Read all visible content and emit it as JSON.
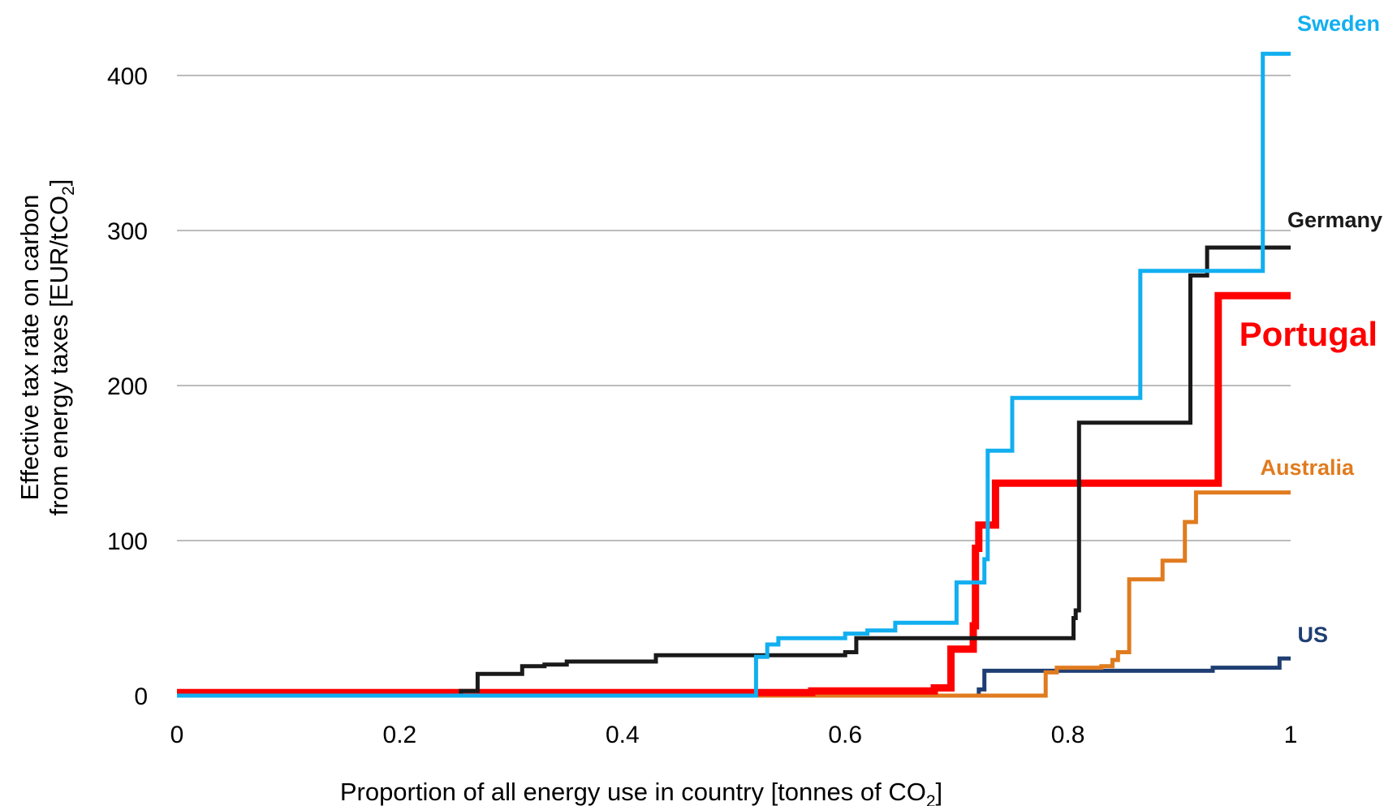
{
  "chart_data": {
    "type": "line",
    "step": true,
    "xlabel": "Proportion of all energy use in country [tonnes of CO",
    "xlabel_sub": "2",
    "xlabel_tail": "]",
    "ylabel_line1": "Effective tax rate on carbon",
    "ylabel_line2": "from energy taxes [EUR/tCO",
    "ylabel_line2_sub": "2",
    "ylabel_line2_tail": "]",
    "xlim": [
      0,
      1
    ],
    "ylim": [
      0,
      400
    ],
    "x_ticks": [
      0,
      0.2,
      0.4,
      0.6,
      0.8,
      1
    ],
    "x_tick_labels": [
      "0",
      "0.2",
      "0.4",
      "0.6",
      "0.8",
      "1"
    ],
    "y_ticks": [
      0,
      100,
      200,
      300,
      400
    ],
    "y_tick_labels": [
      "0",
      "100",
      "200",
      "300",
      "400"
    ],
    "grid": "horizontal",
    "legend": "inline labels at right end of each series",
    "series": [
      {
        "name": "US",
        "color": "#1f3f73",
        "width": 5,
        "x": [
          0,
          0.69,
          0.72,
          0.725,
          0.91,
          0.93,
          0.985,
          0.99,
          1.0
        ],
        "y": [
          0,
          0,
          4,
          16,
          16,
          18,
          18,
          24,
          24
        ]
      },
      {
        "name": "Australia",
        "color": "#e07b1f",
        "width": 5,
        "x": [
          0,
          0.48,
          0.765,
          0.78,
          0.79,
          0.83,
          0.84,
          0.845,
          0.855,
          0.88,
          0.885,
          0.905,
          0.915,
          1.0
        ],
        "y": [
          0,
          0,
          0,
          15,
          18,
          19,
          23,
          28,
          75,
          75,
          87,
          112,
          131,
          131
        ]
      },
      {
        "name": "Portugal",
        "color": "#ff0000",
        "width": 9,
        "x": [
          0,
          0.35,
          0.57,
          0.68,
          0.695,
          0.715,
          0.717,
          0.72,
          0.735,
          0.935,
          1.0
        ],
        "y": [
          2,
          2,
          3,
          5,
          30,
          45,
          95,
          110,
          137,
          258,
          258
        ]
      },
      {
        "name": "Germany",
        "color": "#1a1a1a",
        "width": 5,
        "x": [
          0,
          0.24,
          0.255,
          0.27,
          0.3,
          0.31,
          0.33,
          0.35,
          0.43,
          0.6,
          0.61,
          0.78,
          0.805,
          0.807,
          0.81,
          0.91,
          0.925,
          1.0
        ],
        "y": [
          0,
          0,
          3,
          14,
          14,
          19,
          20,
          22,
          26,
          28,
          37,
          37,
          50,
          55,
          176,
          271,
          289,
          289
        ]
      },
      {
        "name": "Sweden",
        "color": "#12aff0",
        "width": 5,
        "x": [
          0,
          0.48,
          0.52,
          0.53,
          0.54,
          0.6,
          0.62,
          0.645,
          0.7,
          0.72,
          0.725,
          0.728,
          0.75,
          0.86,
          0.865,
          0.975,
          1.0
        ],
        "y": [
          0,
          0,
          25,
          33,
          37,
          40,
          42,
          47,
          73,
          73,
          88,
          158,
          192,
          192,
          274,
          414,
          414
        ]
      }
    ],
    "series_labels": [
      {
        "name": "Sweden",
        "color": "#12aff0",
        "size": 27
      },
      {
        "name": "Germany",
        "color": "#1a1a1a",
        "size": 27
      },
      {
        "name": "Portugal",
        "color": "#ff0000",
        "size": 42
      },
      {
        "name": "Australia",
        "color": "#e07b1f",
        "size": 27
      },
      {
        "name": "US",
        "color": "#1f3f73",
        "size": 27
      }
    ]
  }
}
